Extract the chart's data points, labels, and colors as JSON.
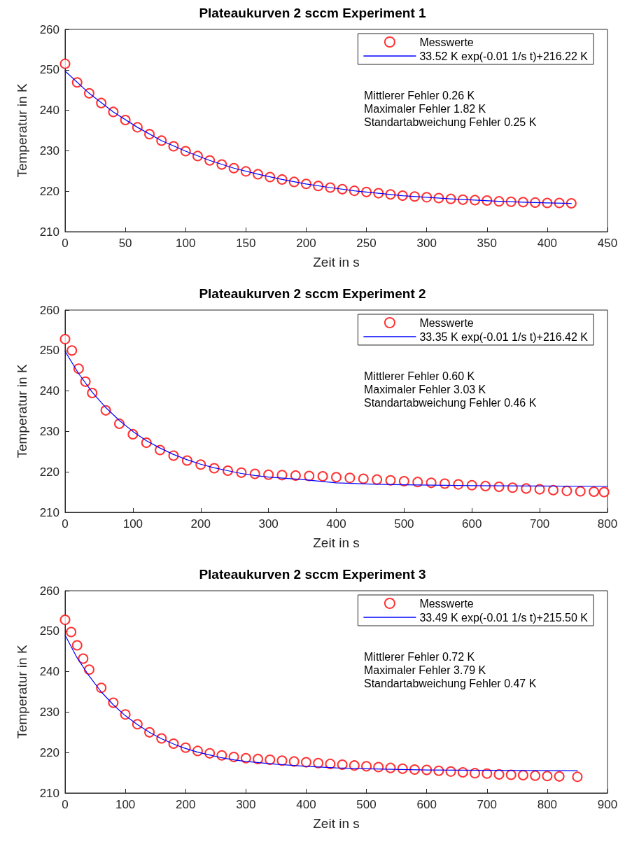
{
  "chart_data": [
    {
      "type": "scatter",
      "title": "Plateaukurven 2 sccm Experiment 1",
      "xlabel": "Zeit in s",
      "ylabel": "Temperatur in K",
      "xlim": [
        0,
        450
      ],
      "xticks": [
        0,
        50,
        100,
        150,
        200,
        250,
        300,
        350,
        400,
        450
      ],
      "ylim": [
        210,
        260
      ],
      "yticks": [
        210,
        220,
        230,
        240,
        250,
        260
      ],
      "grid": false,
      "legend": "top right",
      "line_style": "solid",
      "annotations": [
        "Mittlerer Fehler 0.26 K",
        "Maximaler Fehler 1.82 K",
        "Standartabweichung Fehler 0.25 K"
      ],
      "series": [
        {
          "name": "Messwerte",
          "marker": "circle",
          "color": "#ff0000",
          "x": [
            0,
            10,
            20,
            30,
            40,
            50,
            60,
            70,
            80,
            90,
            100,
            110,
            120,
            130,
            140,
            150,
            160,
            170,
            180,
            190,
            200,
            210,
            220,
            230,
            240,
            250,
            260,
            270,
            280,
            290,
            300,
            310,
            320,
            330,
            340,
            350,
            360,
            370,
            380,
            390,
            400,
            410,
            420
          ],
          "values": [
            251.5,
            246.9,
            244.2,
            241.8,
            239.6,
            237.6,
            235.8,
            234.1,
            232.5,
            231.1,
            229.9,
            228.7,
            227.6,
            226.6,
            225.7,
            224.9,
            224.2,
            223.5,
            222.9,
            222.3,
            221.8,
            221.3,
            220.9,
            220.5,
            220.1,
            219.8,
            219.5,
            219.2,
            218.9,
            218.7,
            218.5,
            218.3,
            218.1,
            217.9,
            217.8,
            217.7,
            217.5,
            217.4,
            217.3,
            217.2,
            217.1,
            217.1,
            217.0
          ]
        },
        {
          "name": "33.52 K exp(-0.01 1/s t)+216.22 K",
          "type": "line",
          "marker": "none",
          "color": "#0000ff",
          "x": [
            0,
            20,
            40,
            60,
            80,
            100,
            120,
            140,
            160,
            180,
            200,
            220,
            240,
            260,
            280,
            300,
            320,
            340,
            360,
            380,
            400,
            420
          ],
          "values": [
            249.7,
            244.2,
            239.6,
            235.8,
            232.5,
            229.9,
            227.6,
            225.7,
            224.2,
            222.9,
            221.8,
            220.9,
            220.1,
            219.5,
            218.9,
            218.5,
            218.1,
            217.8,
            217.5,
            217.3,
            217.1,
            217.0
          ]
        }
      ]
    },
    {
      "type": "scatter",
      "title": "Plateaukurven 2 sccm Experiment 2",
      "xlabel": "Zeit in s",
      "ylabel": "Temperatur in K",
      "xlim": [
        0,
        800
      ],
      "xticks": [
        0,
        100,
        200,
        300,
        400,
        500,
        600,
        700,
        800
      ],
      "ylim": [
        210,
        260
      ],
      "yticks": [
        210,
        220,
        230,
        240,
        250,
        260
      ],
      "grid": false,
      "legend": "top right",
      "line_style": "solid",
      "annotations": [
        "Mittlerer Fehler 0.60 K",
        "Maximaler Fehler 3.03 K",
        "Standartabweichung Fehler 0.46 K"
      ],
      "series": [
        {
          "name": "Messwerte",
          "marker": "circle",
          "color": "#ff0000",
          "x": [
            0,
            10,
            20,
            30,
            40,
            60,
            80,
            100,
            120,
            140,
            160,
            180,
            200,
            220,
            240,
            260,
            280,
            300,
            320,
            340,
            360,
            380,
            400,
            420,
            440,
            460,
            480,
            500,
            520,
            540,
            560,
            580,
            600,
            620,
            640,
            660,
            680,
            700,
            720,
            740,
            760,
            780,
            795
          ],
          "values": [
            252.8,
            250.0,
            245.5,
            242.3,
            239.5,
            235.2,
            231.9,
            229.3,
            227.2,
            225.4,
            224.0,
            222.8,
            221.8,
            220.9,
            220.3,
            219.8,
            219.5,
            219.3,
            219.2,
            219.1,
            219.0,
            218.9,
            218.7,
            218.5,
            218.3,
            218.1,
            217.9,
            217.7,
            217.5,
            217.3,
            217.1,
            216.9,
            216.7,
            216.5,
            216.3,
            216.1,
            215.9,
            215.7,
            215.5,
            215.3,
            215.2,
            215.1,
            215.0
          ]
        },
        {
          "name": "33.35 K exp(-0.01 1/s t)+216.42 K",
          "type": "line",
          "marker": "none",
          "color": "#0000ff",
          "x": [
            0,
            20,
            40,
            60,
            80,
            100,
            120,
            140,
            160,
            180,
            200,
            220,
            240,
            260,
            280,
            300,
            350,
            400,
            450,
            500,
            600,
            700,
            800
          ],
          "values": [
            249.8,
            244.3,
            239.7,
            235.9,
            232.7,
            230.0,
            227.7,
            225.9,
            224.3,
            223.0,
            221.9,
            221.0,
            220.3,
            219.6,
            219.1,
            218.7,
            218.1,
            217.3,
            217.0,
            216.8,
            216.6,
            216.5,
            216.4
          ]
        }
      ]
    },
    {
      "type": "scatter",
      "title": "Plateaukurven 2 sccm Experiment 3",
      "xlabel": "Zeit in s",
      "ylabel": "Temperatur in K",
      "xlim": [
        0,
        900
      ],
      "xticks": [
        0,
        100,
        200,
        300,
        400,
        500,
        600,
        700,
        800,
        900
      ],
      "ylim": [
        210,
        260
      ],
      "yticks": [
        210,
        220,
        230,
        240,
        250,
        260
      ],
      "grid": false,
      "legend": "top right",
      "line_style": "solid",
      "annotations": [
        "Mittlerer Fehler 0.72 K",
        "Maximaler Fehler 3.79 K",
        "Standartabweichung Fehler 0.47 K"
      ],
      "series": [
        {
          "name": "Messwerte",
          "marker": "circle",
          "color": "#ff0000",
          "x": [
            0,
            10,
            20,
            30,
            40,
            60,
            80,
            100,
            120,
            140,
            160,
            180,
            200,
            220,
            240,
            260,
            280,
            300,
            320,
            340,
            360,
            380,
            400,
            420,
            440,
            460,
            480,
            500,
            520,
            540,
            560,
            580,
            600,
            620,
            640,
            660,
            680,
            700,
            720,
            740,
            760,
            780,
            800,
            820,
            850
          ],
          "values": [
            252.8,
            249.8,
            246.5,
            243.2,
            240.5,
            236.0,
            232.3,
            229.4,
            227.0,
            225.0,
            223.5,
            222.2,
            221.2,
            220.4,
            219.8,
            219.3,
            218.9,
            218.6,
            218.4,
            218.2,
            218.0,
            217.8,
            217.6,
            217.4,
            217.2,
            217.0,
            216.8,
            216.6,
            216.4,
            216.2,
            216.0,
            215.8,
            215.7,
            215.5,
            215.3,
            215.1,
            214.9,
            214.8,
            214.6,
            214.5,
            214.4,
            214.3,
            214.2,
            214.1,
            214.0
          ]
        },
        {
          "name": "33.49 K exp(-0.01 1/s t)+215.50 K",
          "type": "line",
          "marker": "none",
          "color": "#0000ff",
          "x": [
            0,
            20,
            40,
            60,
            80,
            100,
            120,
            140,
            160,
            180,
            200,
            220,
            240,
            260,
            280,
            300,
            350,
            400,
            450,
            500,
            600,
            700,
            850
          ],
          "values": [
            249.0,
            243.4,
            238.9,
            235.0,
            231.8,
            229.1,
            226.9,
            225.0,
            223.4,
            222.1,
            221.0,
            220.1,
            219.4,
            218.7,
            218.2,
            217.8,
            217.1,
            216.6,
            216.2,
            216.0,
            215.7,
            215.6,
            215.5
          ]
        }
      ]
    }
  ]
}
